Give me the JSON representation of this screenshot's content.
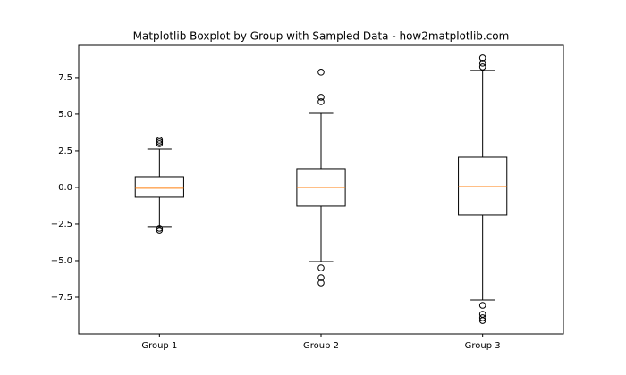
{
  "chart_data": {
    "type": "boxplot",
    "title": "Matplotlib Boxplot by Group with Sampled Data - how2matplotlib.com",
    "categories": [
      "Group 1",
      "Group 2",
      "Group 3"
    ],
    "boxes": [
      {
        "whislo": -2.68,
        "q1": -0.67,
        "med": -0.06,
        "q3": 0.73,
        "whishi": 2.62,
        "fliers": [
          3.23,
          3.11,
          2.99,
          -2.8,
          -2.93
        ]
      },
      {
        "whislo": -5.06,
        "q1": -1.28,
        "med": 0.0,
        "q3": 1.28,
        "whishi": 5.06,
        "fliers": [
          7.87,
          6.16,
          5.85,
          -5.49,
          -6.16,
          -6.52
        ]
      },
      {
        "whislo": -7.68,
        "q1": -1.89,
        "med": 0.06,
        "q3": 2.07,
        "whishi": 7.99,
        "fliers": [
          8.84,
          8.48,
          8.23,
          -8.05,
          -8.66,
          -8.9,
          -9.09
        ]
      }
    ],
    "box_color": "#000000",
    "median_color": "#ff7f0e",
    "ylim": [
      -10.0,
      9.75
    ],
    "yticks": [
      {
        "value": -7.5,
        "label": "−7.5"
      },
      {
        "value": -5.0,
        "label": "−5.0"
      },
      {
        "value": -2.5,
        "label": "−2.5"
      },
      {
        "value": 0.0,
        "label": "0.0"
      },
      {
        "value": 2.5,
        "label": "2.5"
      },
      {
        "value": 5.0,
        "label": "5.0"
      },
      {
        "value": 7.5,
        "label": "7.5"
      }
    ],
    "grid": false
  }
}
